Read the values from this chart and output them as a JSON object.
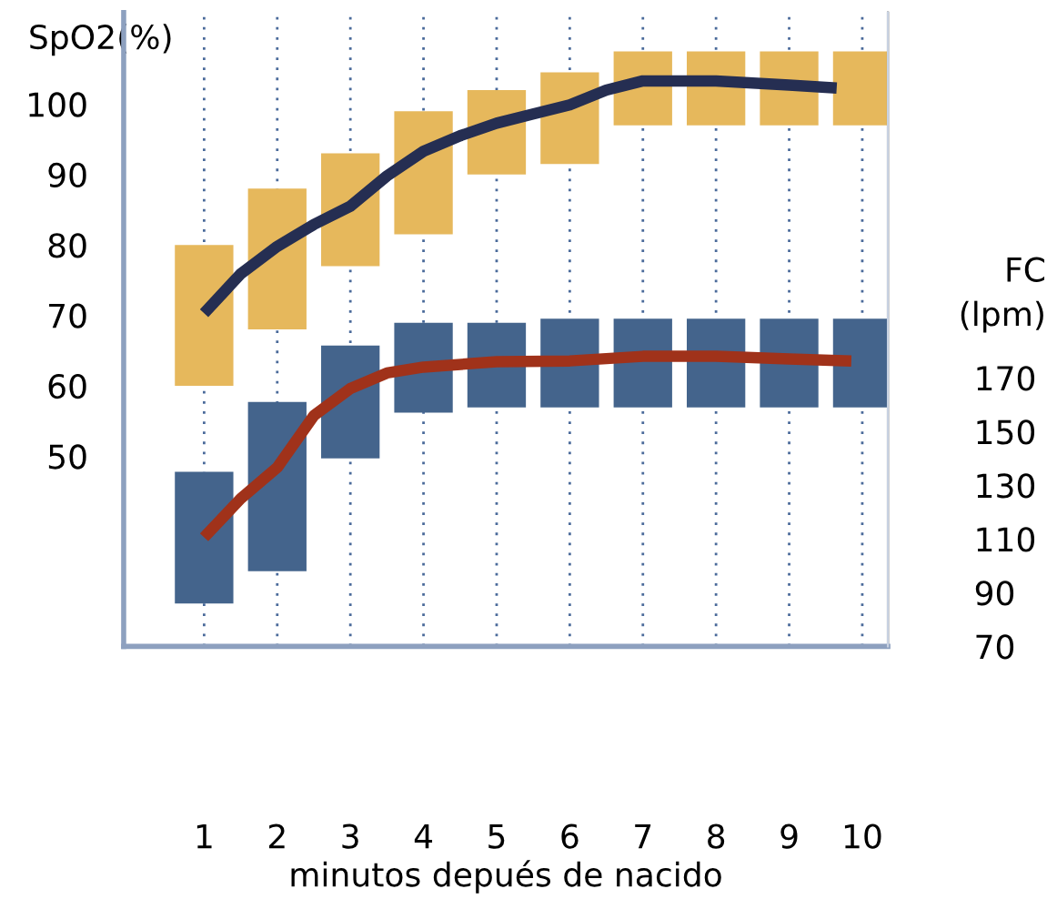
{
  "chart_data": {
    "type": "bar",
    "xlabel": "minutos depués de nacido",
    "ylabel": "SpO2(%)",
    "y2label": "FC\n(lpm)",
    "x": [
      1,
      2,
      3,
      4,
      5,
      6,
      7,
      8,
      9,
      10
    ],
    "xlim": [
      -0.1,
      10.35
    ],
    "xticks": [
      1,
      2,
      3,
      4,
      5,
      6,
      7,
      8,
      9,
      10
    ],
    "ylim": [
      23,
      113
    ],
    "yticks": [
      50,
      60,
      70,
      80,
      90,
      100
    ],
    "y2lim": [
      70,
      306
    ],
    "y2ticks": [
      70,
      90,
      110,
      130,
      150,
      170
    ],
    "grid": "x",
    "legend": false,
    "marker": "none",
    "line_style": "solid",
    "series": [
      {
        "axis": "y",
        "color": "#e6b85c",
        "base": [
          60,
          68,
          77,
          81.5,
          90,
          91.5,
          97,
          97,
          97,
          97
        ],
        "values": [
          20,
          20,
          16,
          17.5,
          12,
          13,
          10.5,
          10.5,
          10.5,
          10.5
        ]
      },
      {
        "axis": "y2",
        "color": "#44648c",
        "base": [
          86,
          98,
          140,
          157,
          159,
          159,
          159,
          159,
          159,
          159
        ],
        "values": [
          49,
          63,
          42,
          33.5,
          31.5,
          33,
          33,
          33,
          33,
          33
        ]
      },
      {
        "type": "line",
        "axis": "y",
        "color": "#252e52",
        "x": [
          1,
          1.5,
          2,
          2.5,
          3,
          3.5,
          4,
          4.5,
          5,
          5.5,
          6,
          6.5,
          7,
          8,
          9,
          9.65
        ],
        "values": [
          70.3,
          75.9,
          79.8,
          82.9,
          85.5,
          89.8,
          93.3,
          95.5,
          97.3,
          98.6,
          99.9,
          102,
          103.3,
          103.3,
          102.7,
          102.3
        ]
      },
      {
        "type": "line",
        "axis": "y2",
        "color": "#a0321a",
        "x": [
          1,
          1.5,
          2,
          2.5,
          3,
          3.5,
          4,
          5,
          6,
          7,
          8,
          9,
          9.85
        ],
        "values": [
          110.6,
          125,
          136.6,
          155.9,
          166,
          171.8,
          174,
          176,
          176.3,
          178,
          178,
          177,
          176.3
        ]
      }
    ]
  }
}
